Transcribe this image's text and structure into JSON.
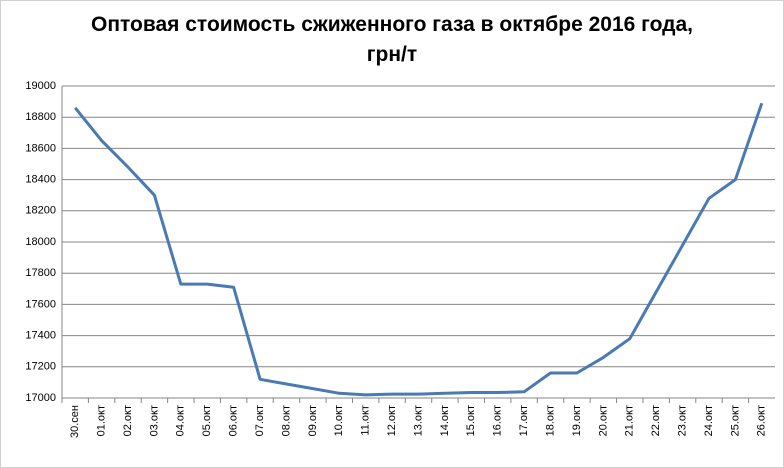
{
  "chart_data": {
    "type": "line",
    "title": "Оптовая стоимость сжиженного газа в октябре 2016 года, грн/т",
    "categories": [
      "30.сен",
      "01.окт",
      "02.окт",
      "03.окт",
      "04.окт",
      "05.окт",
      "06.окт",
      "07.окт",
      "08.окт",
      "09.окт",
      "10.окт",
      "11.окт",
      "12.окт",
      "13.окт",
      "14.окт",
      "15.окт",
      "16.окт",
      "17.окт",
      "18.окт",
      "19.окт",
      "20.окт",
      "21.окт",
      "22.окт",
      "23.окт",
      "24.окт",
      "25.окт",
      "26.окт"
    ],
    "values": [
      18860,
      18650,
      18480,
      18300,
      17730,
      17730,
      17710,
      17120,
      17090,
      17060,
      17030,
      17020,
      17025,
      17025,
      17030,
      17035,
      17035,
      17040,
      17160,
      17160,
      17260,
      17380,
      17680,
      17980,
      18280,
      18400,
      18890
    ],
    "color": "#4a7ab4",
    "ylim": [
      17000,
      19000
    ],
    "yticks": [
      17000,
      17200,
      17400,
      17600,
      17800,
      18000,
      18200,
      18400,
      18600,
      18800,
      19000
    ],
    "grid": true
  }
}
